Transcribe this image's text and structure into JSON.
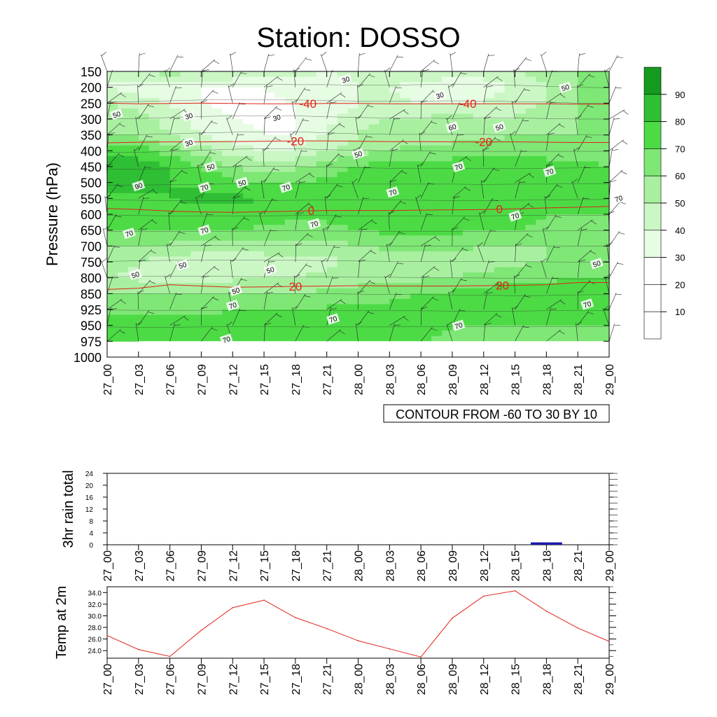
{
  "title": "Station: DOSSO",
  "colors": {
    "shades": [
      "#ffffff",
      "#ffffff",
      "#ffffff",
      "#e6fce3",
      "#cbf7c5",
      "#a8f0a0",
      "#7ee775",
      "#4cdb45",
      "#2fbf34",
      "#149a1e"
    ],
    "isotherm": "#e2231a",
    "rain_bar": "#1a1aa8",
    "temp_line": "#e2231a"
  },
  "time_labels": [
    "27_00",
    "27_03",
    "27_06",
    "27_09",
    "27_12",
    "27_15",
    "27_18",
    "27_21",
    "28_00",
    "28_03",
    "28_06",
    "28_09",
    "28_12",
    "28_15",
    "28_18",
    "28_21",
    "29_00"
  ],
  "chart_data": [
    {
      "type": "heatmap",
      "name": "time-pressure section",
      "ylabel": "Pressure (hPa)",
      "y_ticks": [
        "150",
        "200",
        "250",
        "300",
        "350",
        "400",
        "450",
        "500",
        "550",
        "600",
        "650",
        "700",
        "750",
        "800",
        "850",
        "925",
        "950",
        "975",
        "1000"
      ],
      "legend_levels": [
        "10",
        "20",
        "30",
        "40",
        "50",
        "60",
        "70",
        "80",
        "90"
      ],
      "footer_label": "CONTOUR FROM -60 TO 30 BY 10",
      "rh_values": [
        [
          40,
          45,
          55,
          50,
          50,
          45,
          45,
          40,
          42,
          45,
          50,
          45,
          45,
          50,
          55,
          60,
          60
        ],
        [
          40,
          35,
          35,
          30,
          30,
          30,
          35,
          35,
          40,
          40,
          35,
          30,
          35,
          40,
          50,
          60,
          65
        ],
        [
          50,
          45,
          38,
          30,
          28,
          28,
          30,
          35,
          40,
          42,
          40,
          38,
          40,
          45,
          50,
          60,
          65
        ],
        [
          55,
          55,
          45,
          35,
          30,
          28,
          30,
          38,
          45,
          50,
          50,
          55,
          50,
          50,
          55,
          60,
          60
        ],
        [
          60,
          58,
          50,
          40,
          35,
          30,
          30,
          40,
          50,
          55,
          55,
          55,
          55,
          60,
          60,
          60,
          62
        ],
        [
          75,
          75,
          65,
          55,
          45,
          40,
          40,
          50,
          55,
          60,
          62,
          65,
          65,
          65,
          65,
          65,
          65
        ],
        [
          85,
          85,
          80,
          70,
          60,
          55,
          58,
          65,
          70,
          75,
          75,
          75,
          75,
          75,
          75,
          72,
          70
        ],
        [
          85,
          85,
          80,
          78,
          72,
          70,
          70,
          72,
          75,
          75,
          75,
          75,
          78,
          75,
          75,
          72,
          70
        ],
        [
          75,
          78,
          80,
          82,
          82,
          80,
          78,
          75,
          75,
          75,
          78,
          80,
          80,
          78,
          75,
          72,
          70
        ],
        [
          70,
          72,
          75,
          75,
          75,
          75,
          72,
          72,
          75,
          75,
          75,
          75,
          75,
          72,
          70,
          70,
          70
        ],
        [
          70,
          70,
          70,
          70,
          70,
          68,
          65,
          68,
          70,
          72,
          72,
          72,
          70,
          70,
          68,
          65,
          65
        ],
        [
          60,
          60,
          58,
          55,
          55,
          55,
          55,
          55,
          60,
          62,
          62,
          62,
          60,
          60,
          60,
          60,
          60
        ],
        [
          55,
          50,
          45,
          42,
          42,
          45,
          45,
          48,
          52,
          55,
          55,
          55,
          55,
          58,
          60,
          62,
          65
        ],
        [
          50,
          48,
          45,
          45,
          48,
          50,
          50,
          52,
          55,
          55,
          58,
          60,
          62,
          65,
          68,
          70,
          70
        ],
        [
          60,
          60,
          60,
          62,
          62,
          60,
          60,
          62,
          65,
          68,
          70,
          72,
          75,
          80,
          78,
          72,
          70
        ],
        [
          65,
          68,
          68,
          68,
          70,
          70,
          70,
          72,
          72,
          72,
          72,
          75,
          75,
          75,
          72,
          70,
          70
        ],
        [
          75,
          78,
          78,
          75,
          72,
          72,
          75,
          75,
          75,
          75,
          72,
          70,
          70,
          70,
          70,
          70,
          70
        ],
        [
          70,
          72,
          78,
          78,
          75,
          72,
          70,
          70,
          72,
          72,
          70,
          68,
          65,
          62,
          60,
          60,
          62
        ]
      ],
      "contour_labels": [
        {
          "text": "30",
          "t": 7.6,
          "p": 175
        },
        {
          "text": "30",
          "t": 10.6,
          "p": 225
        },
        {
          "text": "30",
          "t": 2.6,
          "p": 290
        },
        {
          "text": "30",
          "t": 5.4,
          "p": 295
        },
        {
          "text": "30",
          "t": 2.6,
          "p": 375
        },
        {
          "text": "50",
          "t": 0.3,
          "p": 285
        },
        {
          "text": "50",
          "t": 14.6,
          "p": 200
        },
        {
          "text": "50",
          "t": 8.0,
          "p": 410
        },
        {
          "text": "50",
          "t": 12.5,
          "p": 325
        },
        {
          "text": "60",
          "t": 11.0,
          "p": 325
        },
        {
          "text": "50",
          "t": 3.3,
          "p": 450
        },
        {
          "text": "50",
          "t": 4.3,
          "p": 500
        },
        {
          "text": "70",
          "t": 11.2,
          "p": 450
        },
        {
          "text": "70",
          "t": 14.1,
          "p": 465
        },
        {
          "text": "90",
          "t": 1.0,
          "p": 510
        },
        {
          "text": "70",
          "t": 3.1,
          "p": 515
        },
        {
          "text": "70",
          "t": 5.7,
          "p": 515
        },
        {
          "text": "70",
          "t": 9.1,
          "p": 530
        },
        {
          "text": "70",
          "t": 16.3,
          "p": 550
        },
        {
          "text": "70",
          "t": 13.0,
          "p": 605
        },
        {
          "text": "70",
          "t": 6.6,
          "p": 630
        },
        {
          "text": "70",
          "t": 3.1,
          "p": 650
        },
        {
          "text": "70",
          "t": 0.7,
          "p": 660
        },
        {
          "text": "50",
          "t": 2.4,
          "p": 760
        },
        {
          "text": "50",
          "t": 5.2,
          "p": 775
        },
        {
          "text": "50",
          "t": 0.9,
          "p": 790
        },
        {
          "text": "50",
          "t": 15.6,
          "p": 755
        },
        {
          "text": "50",
          "t": 4.1,
          "p": 840
        },
        {
          "text": "70",
          "t": 4.0,
          "p": 905
        },
        {
          "text": "70",
          "t": 15.3,
          "p": 900
        },
        {
          "text": "70",
          "t": 7.2,
          "p": 940
        },
        {
          "text": "70",
          "t": 11.2,
          "p": 950
        },
        {
          "text": "70",
          "t": 3.8,
          "p": 972
        }
      ],
      "isotherms": [
        {
          "label": "-40",
          "p": [
            250,
            252,
            251,
            250,
            251,
            252,
            252,
            251,
            251,
            252,
            252,
            252,
            252,
            252,
            252,
            253,
            253
          ],
          "label_pos": [
            [
              6.4,
              "-40"
            ],
            [
              11.5,
              "-40"
            ]
          ]
        },
        {
          "label": "-20",
          "p": [
            375,
            373,
            372,
            372,
            371,
            370,
            369,
            369,
            370,
            371,
            371,
            372,
            372,
            372,
            373,
            374,
            374
          ],
          "label_pos": [
            [
              6.0,
              "-20"
            ],
            [
              12.0,
              "-20"
            ]
          ]
        },
        {
          "label": "0",
          "p": [
            582,
            585,
            590,
            593,
            594,
            592,
            590,
            588,
            588,
            588,
            587,
            586,
            585,
            583,
            580,
            578,
            575
          ],
          "label_pos": [
            [
              6.5,
              "0"
            ],
            [
              12.5,
              "0"
            ]
          ]
        },
        {
          "label": "20",
          "p": [
            837,
            833,
            822,
            826,
            830,
            829,
            827,
            826,
            825,
            826,
            826,
            826,
            825,
            824,
            822,
            815,
            815
          ],
          "label_pos": [
            [
              6.0,
              "20"
            ],
            [
              12.6,
              "20"
            ]
          ]
        }
      ]
    },
    {
      "type": "bar",
      "name": "3hr rain total",
      "ylabel": "3hr rain total",
      "ylim": [
        0,
        24
      ],
      "y_ticks": [
        "0",
        "4",
        "8",
        "12",
        "16",
        "20",
        "24"
      ],
      "categories": [
        "27_00",
        "27_03",
        "27_06",
        "27_09",
        "27_12",
        "27_15",
        "27_18",
        "27_21",
        "28_00",
        "28_03",
        "28_06",
        "28_09",
        "28_12",
        "28_15",
        "28_18",
        "28_21",
        "29_00"
      ],
      "values": [
        0,
        0,
        0,
        0,
        0,
        0,
        0,
        0,
        0,
        0,
        0,
        0,
        0,
        0,
        0.8,
        0,
        0
      ]
    },
    {
      "type": "line",
      "name": "Temp at 2m",
      "ylabel": "Temp at 2m",
      "ylim": [
        22.7,
        35.0
      ],
      "y_ticks": [
        "24.0",
        "26.0",
        "28.0",
        "30.0",
        "32.0",
        "34.0"
      ],
      "categories": [
        "27_00",
        "27_03",
        "27_06",
        "27_09",
        "27_12",
        "27_15",
        "27_18",
        "27_21",
        "28_00",
        "28_03",
        "28_06",
        "28_09",
        "28_12",
        "28_15",
        "28_18",
        "28_21",
        "29_00"
      ],
      "values": [
        26.6,
        24.2,
        23.0,
        27.5,
        31.4,
        32.7,
        29.7,
        27.8,
        25.7,
        24.3,
        22.9,
        29.6,
        33.4,
        34.3,
        30.8,
        27.9,
        25.6
      ]
    }
  ]
}
